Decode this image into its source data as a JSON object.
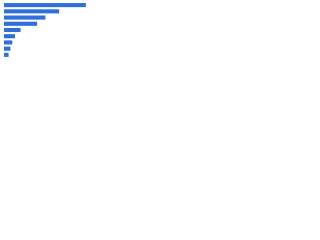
{
  "chart_data": {
    "type": "bar",
    "orientation": "horizontal",
    "categories": [
      null,
      null,
      null,
      null,
      null,
      null,
      null,
      null,
      null
    ],
    "values": [
      89,
      60,
      45,
      36,
      18,
      12,
      9,
      7,
      5
    ],
    "color": "#2e6fd8",
    "xlim": [
      0,
      100
    ]
  }
}
